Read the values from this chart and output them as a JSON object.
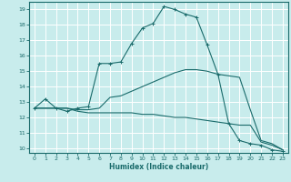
{
  "xlabel": "Humidex (Indice chaleur)",
  "bg_color": "#c8ecec",
  "grid_color": "#ffffff",
  "line_color": "#1a6b6b",
  "xlim": [
    -0.5,
    23.5
  ],
  "ylim": [
    9.7,
    19.5
  ],
  "yticks": [
    10,
    11,
    12,
    13,
    14,
    15,
    16,
    17,
    18,
    19
  ],
  "xticks": [
    0,
    1,
    2,
    3,
    4,
    5,
    6,
    7,
    8,
    9,
    10,
    11,
    12,
    13,
    14,
    15,
    16,
    17,
    18,
    19,
    20,
    21,
    22,
    23
  ],
  "series": [
    {
      "x": [
        0,
        1,
        2,
        3,
        4,
        5,
        6,
        7,
        8,
        9,
        10,
        11,
        12,
        13,
        14,
        15,
        16,
        17,
        18,
        19,
        20,
        21,
        22,
        23
      ],
      "y": [
        12.6,
        13.2,
        12.6,
        12.4,
        12.6,
        12.7,
        15.5,
        15.5,
        15.6,
        16.8,
        17.8,
        18.1,
        19.2,
        19.0,
        18.7,
        18.5,
        16.7,
        14.8,
        11.6,
        10.5,
        10.3,
        10.2,
        9.9,
        9.8
      ],
      "has_marker": true
    },
    {
      "x": [
        0,
        3,
        4,
        5,
        6,
        7,
        8,
        9,
        10,
        11,
        12,
        13,
        14,
        15,
        16,
        17,
        18,
        19,
        20,
        21,
        22,
        23
      ],
      "y": [
        12.6,
        12.6,
        12.5,
        12.5,
        12.6,
        13.3,
        13.4,
        13.7,
        14.0,
        14.3,
        14.6,
        14.9,
        15.1,
        15.1,
        15.0,
        14.8,
        14.7,
        14.6,
        12.5,
        10.5,
        10.3,
        9.9
      ],
      "has_marker": false
    },
    {
      "x": [
        0,
        3,
        4,
        5,
        6,
        7,
        8,
        9,
        10,
        11,
        12,
        13,
        14,
        15,
        16,
        17,
        18,
        19,
        20,
        21,
        22,
        23
      ],
      "y": [
        12.6,
        12.6,
        12.4,
        12.3,
        12.3,
        12.3,
        12.3,
        12.3,
        12.2,
        12.2,
        12.1,
        12.0,
        12.0,
        11.9,
        11.8,
        11.7,
        11.6,
        11.5,
        11.5,
        10.4,
        10.2,
        9.9
      ],
      "has_marker": false
    }
  ]
}
